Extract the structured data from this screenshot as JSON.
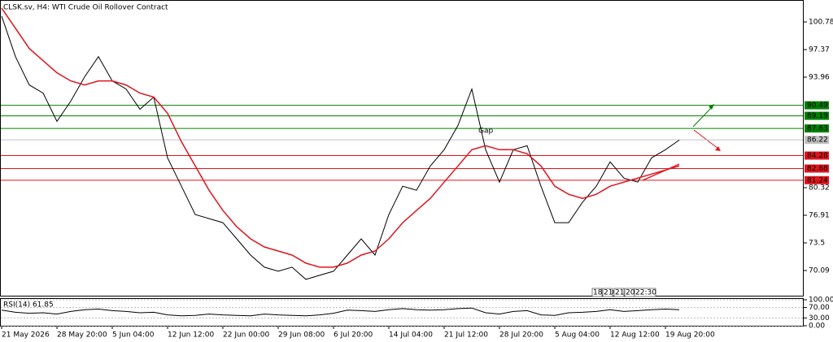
{
  "chart_data": [
    {
      "type": "line",
      "title": "CLSK.sv, H4:  WTI Crude Oil Rollover Contract",
      "categories": [
        "21 May 2026",
        null,
        null,
        null,
        "28 May 20:00",
        null,
        null,
        null,
        "5 Jun 04:00",
        null,
        null,
        null,
        "12 Jun 12:00",
        null,
        null,
        null,
        "22 Jun 00:00",
        null,
        null,
        null,
        "29 Jun 08:00",
        null,
        null,
        null,
        "6 Jul 20:00",
        null,
        null,
        null,
        "14 Jul 04:00",
        null,
        null,
        null,
        "21 Jul 12:00",
        null,
        null,
        null,
        "28 Jul 20:00",
        null,
        null,
        null,
        "5 Aug 04:00",
        null,
        null,
        null,
        "12 Aug 12:00",
        null,
        null,
        null,
        "19 Aug 20:00",
        null
      ],
      "series": [
        {
          "color": "#000000",
          "values": [
            101.5,
            96.5,
            93,
            92,
            88.5,
            91,
            94,
            96.5,
            93.5,
            92.5,
            90,
            91.5,
            84,
            80.5,
            77,
            76.5,
            76,
            74,
            72,
            70.5,
            70,
            70.5,
            69,
            69.5,
            70,
            72,
            74,
            72,
            77,
            80.5,
            80,
            83,
            85,
            88,
            92.5,
            85,
            81,
            85,
            85.5,
            80.5,
            76,
            76,
            78.5,
            80.5,
            83.5,
            81.5,
            81,
            84,
            85,
            86.2
          ]
        },
        {
          "color": "#e0141e",
          "values": [
            102.5,
            100,
            97.5,
            96,
            94.5,
            93.5,
            93,
            93.5,
            93.5,
            93,
            92,
            91.5,
            89.5,
            86,
            83,
            80,
            77.5,
            75.5,
            74,
            73,
            72.5,
            72,
            71,
            70.5,
            70.5,
            71,
            72,
            72.5,
            74,
            76,
            77.5,
            79,
            81,
            83,
            85,
            85.5,
            85,
            85,
            84.5,
            83,
            80.5,
            79.5,
            79,
            79.5,
            80.5,
            81,
            81.5,
            82,
            82.5,
            83
          ]
        }
      ],
      "ylim": [
        66.88,
        103.49
      ],
      "yticks": [
        100.78,
        97.37,
        93.96,
        80.32,
        76.91,
        73.5,
        70.09
      ],
      "levels": [
        {
          "value": 90.49,
          "color": "#008000"
        },
        {
          "value": 89.19,
          "color": "#008000"
        },
        {
          "value": 87.63,
          "color": "#008000"
        },
        {
          "value": 84.28,
          "color": "#e0141e"
        },
        {
          "value": 82.68,
          "color": "#e0141e"
        },
        {
          "value": 81.24,
          "color": "#e0141e"
        },
        {
          "value": 86.22,
          "color": "#c0c0c0"
        }
      ],
      "annotation": "Gap",
      "time_markers": [
        "18:20",
        "21",
        "21",
        "20",
        "22:30"
      ]
    },
    {
      "type": "line",
      "title": "RSI(14) 61.85",
      "series": [
        {
          "color": "#000000",
          "values": [
            60,
            52,
            48,
            50,
            45,
            55,
            62,
            64,
            58,
            55,
            50,
            52,
            42,
            38,
            40,
            45,
            42,
            40,
            38,
            45,
            42,
            40,
            38,
            42,
            48,
            60,
            58,
            55,
            62,
            66,
            62,
            60,
            62,
            66,
            68,
            50,
            45,
            55,
            58,
            42,
            40,
            50,
            52,
            55,
            62,
            55,
            58,
            62,
            64,
            62
          ]
        }
      ],
      "ylim": [
        0,
        100
      ],
      "yticks": [
        {
          "value": 100,
          "label": "100.00"
        },
        {
          "value": 70,
          "label": "70.00"
        },
        {
          "value": 30,
          "label": "30.00"
        },
        {
          "value": 0,
          "label": "0.00"
        }
      ]
    }
  ]
}
